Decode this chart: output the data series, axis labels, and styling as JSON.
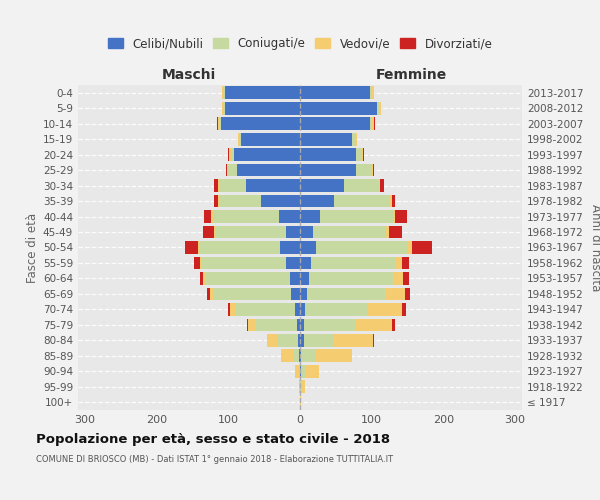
{
  "age_groups": [
    "100+",
    "95-99",
    "90-94",
    "85-89",
    "80-84",
    "75-79",
    "70-74",
    "65-69",
    "60-64",
    "55-59",
    "50-54",
    "45-49",
    "40-44",
    "35-39",
    "30-34",
    "25-29",
    "20-24",
    "15-19",
    "10-14",
    "5-9",
    "0-4"
  ],
  "birth_years": [
    "≤ 1917",
    "1918-1922",
    "1923-1927",
    "1928-1932",
    "1933-1937",
    "1938-1942",
    "1943-1947",
    "1948-1952",
    "1953-1957",
    "1958-1962",
    "1963-1967",
    "1968-1972",
    "1973-1977",
    "1978-1982",
    "1983-1987",
    "1988-1992",
    "1993-1997",
    "1998-2002",
    "2003-2007",
    "2008-2012",
    "2013-2017"
  ],
  "males_celibe": [
    0,
    0,
    0,
    2,
    3,
    4,
    7,
    12,
    14,
    20,
    28,
    20,
    30,
    55,
    75,
    88,
    92,
    82,
    110,
    105,
    105
  ],
  "males_coniugato": [
    0,
    0,
    2,
    8,
    28,
    58,
    83,
    108,
    118,
    118,
    112,
    98,
    92,
    58,
    38,
    12,
    5,
    2,
    2,
    2,
    2
  ],
  "males_vedovo": [
    0,
    2,
    5,
    16,
    15,
    10,
    8,
    5,
    3,
    2,
    2,
    2,
    2,
    2,
    2,
    2,
    2,
    2,
    2,
    2,
    2
  ],
  "males_divorziato": [
    0,
    0,
    0,
    0,
    0,
    2,
    3,
    5,
    5,
    8,
    18,
    15,
    10,
    5,
    5,
    2,
    2,
    0,
    2,
    0,
    0
  ],
  "females_nubile": [
    0,
    0,
    2,
    2,
    5,
    5,
    7,
    10,
    12,
    15,
    22,
    18,
    28,
    48,
    62,
    78,
    78,
    72,
    98,
    108,
    98
  ],
  "females_coniugata": [
    0,
    2,
    5,
    20,
    42,
    72,
    88,
    108,
    118,
    118,
    128,
    102,
    102,
    78,
    48,
    22,
    8,
    5,
    3,
    3,
    3
  ],
  "females_vedova": [
    2,
    5,
    20,
    50,
    55,
    52,
    48,
    28,
    14,
    9,
    7,
    4,
    3,
    2,
    2,
    2,
    2,
    2,
    2,
    2,
    2
  ],
  "females_divorziata": [
    0,
    0,
    0,
    0,
    2,
    3,
    5,
    8,
    8,
    10,
    28,
    18,
    16,
    5,
    5,
    2,
    2,
    0,
    2,
    0,
    0
  ],
  "color_celibe": "#4472c4",
  "color_coniugato": "#c5d9a0",
  "color_vedovo": "#f5cc70",
  "color_divorziato": "#cc2222",
  "title": "Popolazione per età, sesso e stato civile - 2018",
  "subtitle": "COMUNE DI BRIOSCO (MB) - Dati ISTAT 1° gennaio 2018 - Elaborazione TUTTITALIA.IT",
  "label_maschi": "Maschi",
  "label_femmine": "Femmine",
  "ylabel_left": "Fasce di età",
  "ylabel_right": "Anni di nascita",
  "xlim": 310,
  "bg_color": "#f2f2f2",
  "plot_bg": "#e8e8e8",
  "legend_labels": [
    "Celibi/Nubili",
    "Coniugati/e",
    "Vedovi/e",
    "Divorziati/e"
  ],
  "tick_positions": [
    -300,
    -200,
    -100,
    0,
    100,
    200,
    300
  ]
}
